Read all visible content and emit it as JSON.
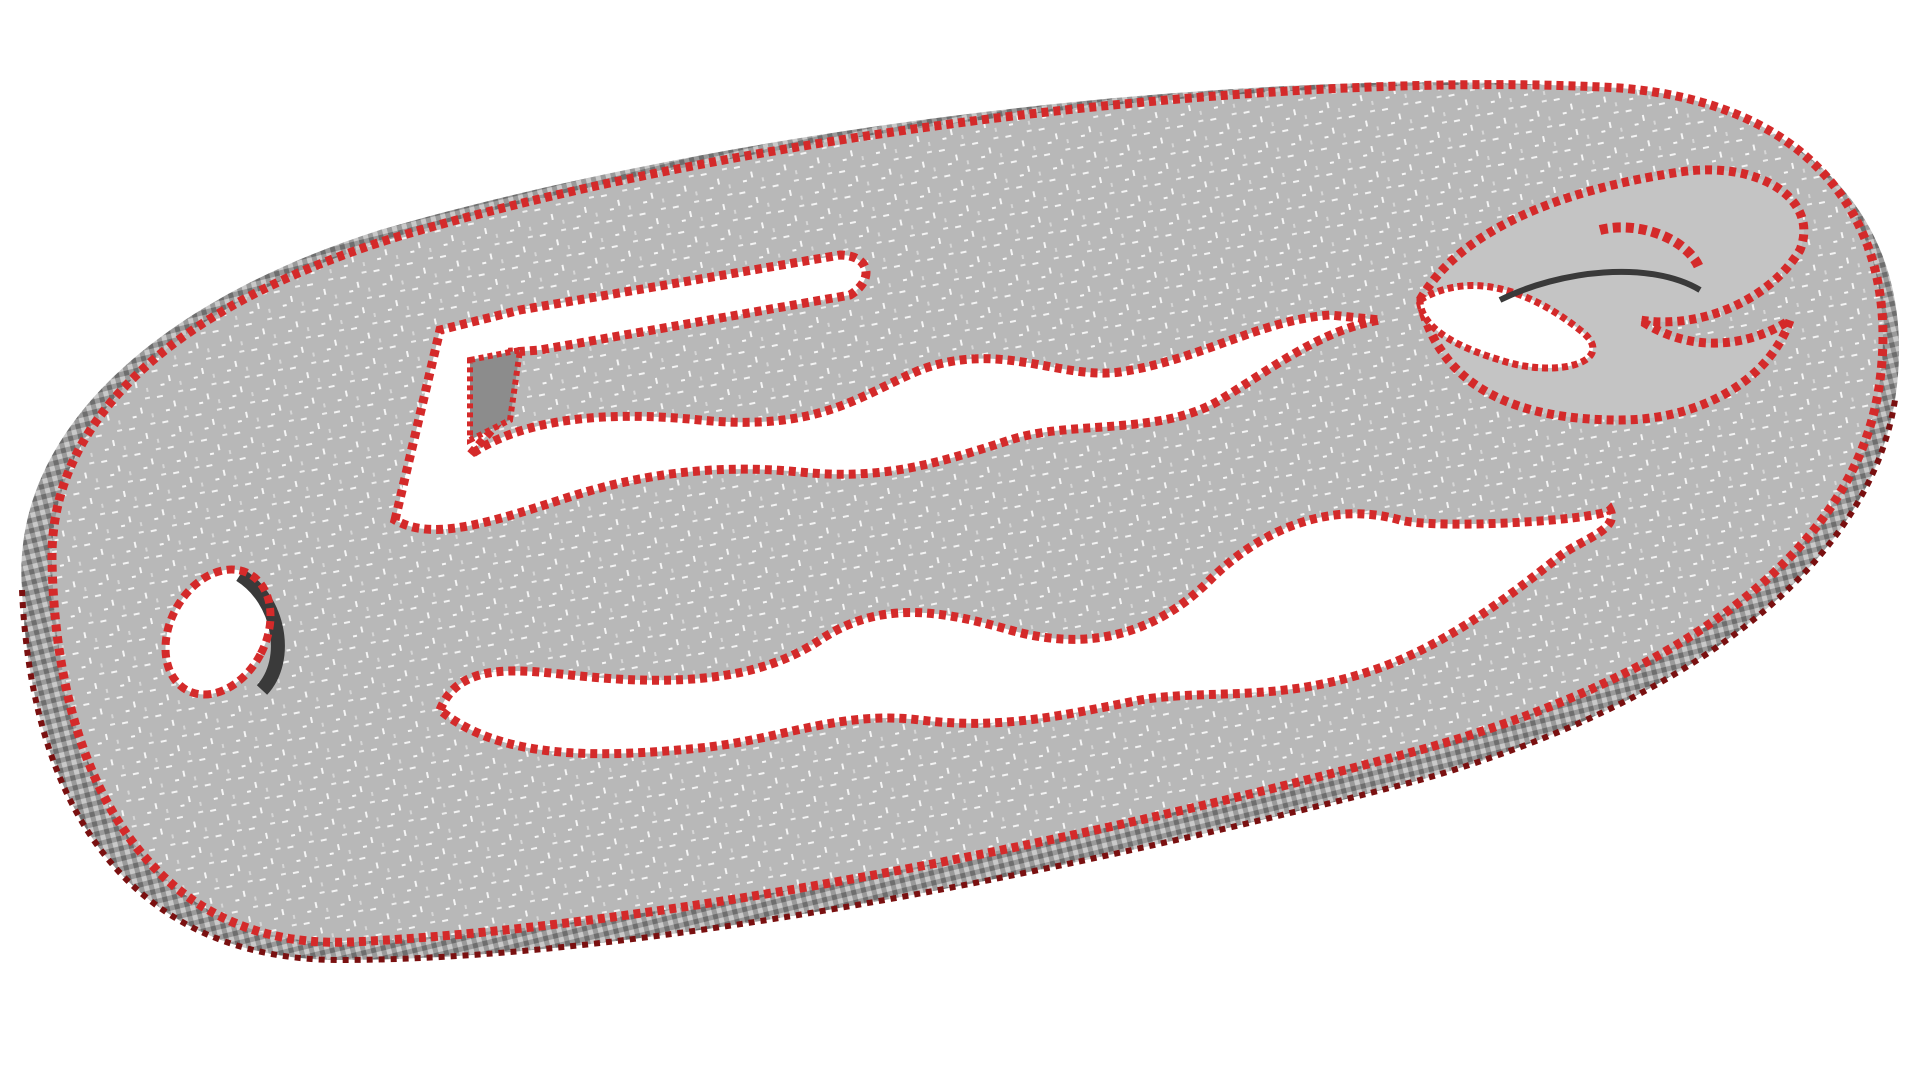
{
  "scene": {
    "subject": "keychain-tag-voxel-model",
    "background_color": "#ffffff",
    "part_color": "#b8b8b8",
    "part_side_color": "#8a8a8a",
    "edge_highlight_color": "#d42a2a",
    "edge_dark_color": "#7a1010",
    "speckle_color": "#f2f2f2"
  }
}
